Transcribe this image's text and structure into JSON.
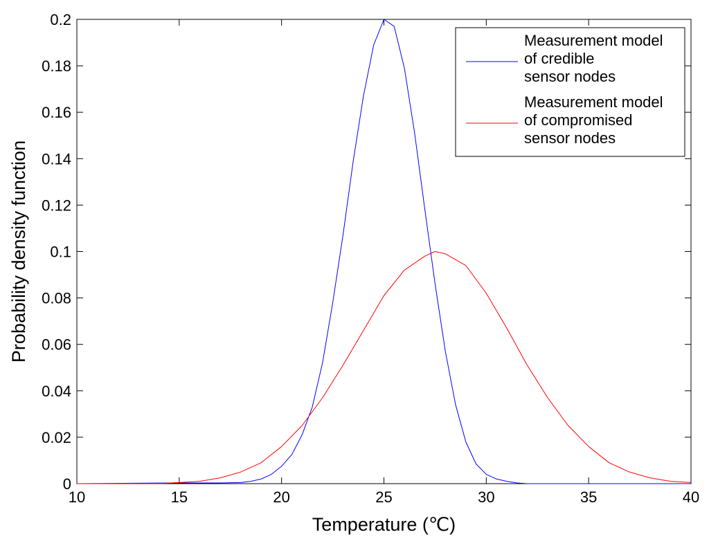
{
  "chart_data": {
    "type": "line",
    "title": "",
    "xlabel": "Temperature (℃)",
    "ylabel": "Probability density function",
    "xlim": [
      10,
      40
    ],
    "ylim": [
      0,
      0.2
    ],
    "x_ticks": [
      "10",
      "15",
      "20",
      "25",
      "30",
      "35",
      "40"
    ],
    "y_ticks": [
      "0",
      "0.02",
      "0.04",
      "0.06",
      "0.08",
      "0.1",
      "0.12",
      "0.14",
      "0.16",
      "0.18",
      "0.2"
    ],
    "grid": false,
    "legend_position": "top-right",
    "series": [
      {
        "name": "Measurement model of credible sensor nodes",
        "legend_lines": [
          "Measurement model",
          "of credible",
          "sensor nodes"
        ],
        "color": "#0000ff",
        "x": [
          10,
          14.5,
          16,
          17,
          18,
          18.5,
          19,
          19.5,
          20,
          20.5,
          21,
          21.5,
          22,
          22.5,
          23,
          23.5,
          24,
          24.5,
          25,
          25.5,
          26,
          26.5,
          27,
          27.5,
          28,
          28.5,
          29,
          29.5,
          30,
          30.5,
          31,
          31.5,
          32,
          34,
          36,
          40
        ],
        "y": [
          0,
          0.0003,
          0.0003,
          0.0003,
          0.0005,
          0.001,
          0.002,
          0.004,
          0.0075,
          0.0125,
          0.021,
          0.033,
          0.052,
          0.078,
          0.107,
          0.139,
          0.167,
          0.189,
          0.2,
          0.197,
          0.179,
          0.151,
          0.118,
          0.086,
          0.057,
          0.034,
          0.018,
          0.0085,
          0.004,
          0.002,
          0.001,
          0.0003,
          0,
          0,
          0,
          0
        ]
      },
      {
        "name": "Measurement model of compromised sensor nodes",
        "legend_lines": [
          "Measurement model",
          "of compromised",
          "sensor nodes"
        ],
        "color": "#ff0000",
        "x": [
          10,
          12,
          14,
          15,
          16,
          17,
          18,
          19,
          20,
          21,
          22,
          23,
          24,
          25,
          26,
          27,
          27.5,
          28,
          29,
          30,
          31,
          32,
          33,
          34,
          35,
          36,
          37,
          38,
          39,
          40
        ],
        "y": [
          0,
          0,
          0,
          0.0005,
          0.001,
          0.0025,
          0.005,
          0.009,
          0.016,
          0.025,
          0.037,
          0.051,
          0.066,
          0.081,
          0.092,
          0.098,
          0.1,
          0.099,
          0.094,
          0.082,
          0.067,
          0.051,
          0.037,
          0.025,
          0.016,
          0.009,
          0.005,
          0.0025,
          0.001,
          0.0005
        ]
      }
    ]
  }
}
